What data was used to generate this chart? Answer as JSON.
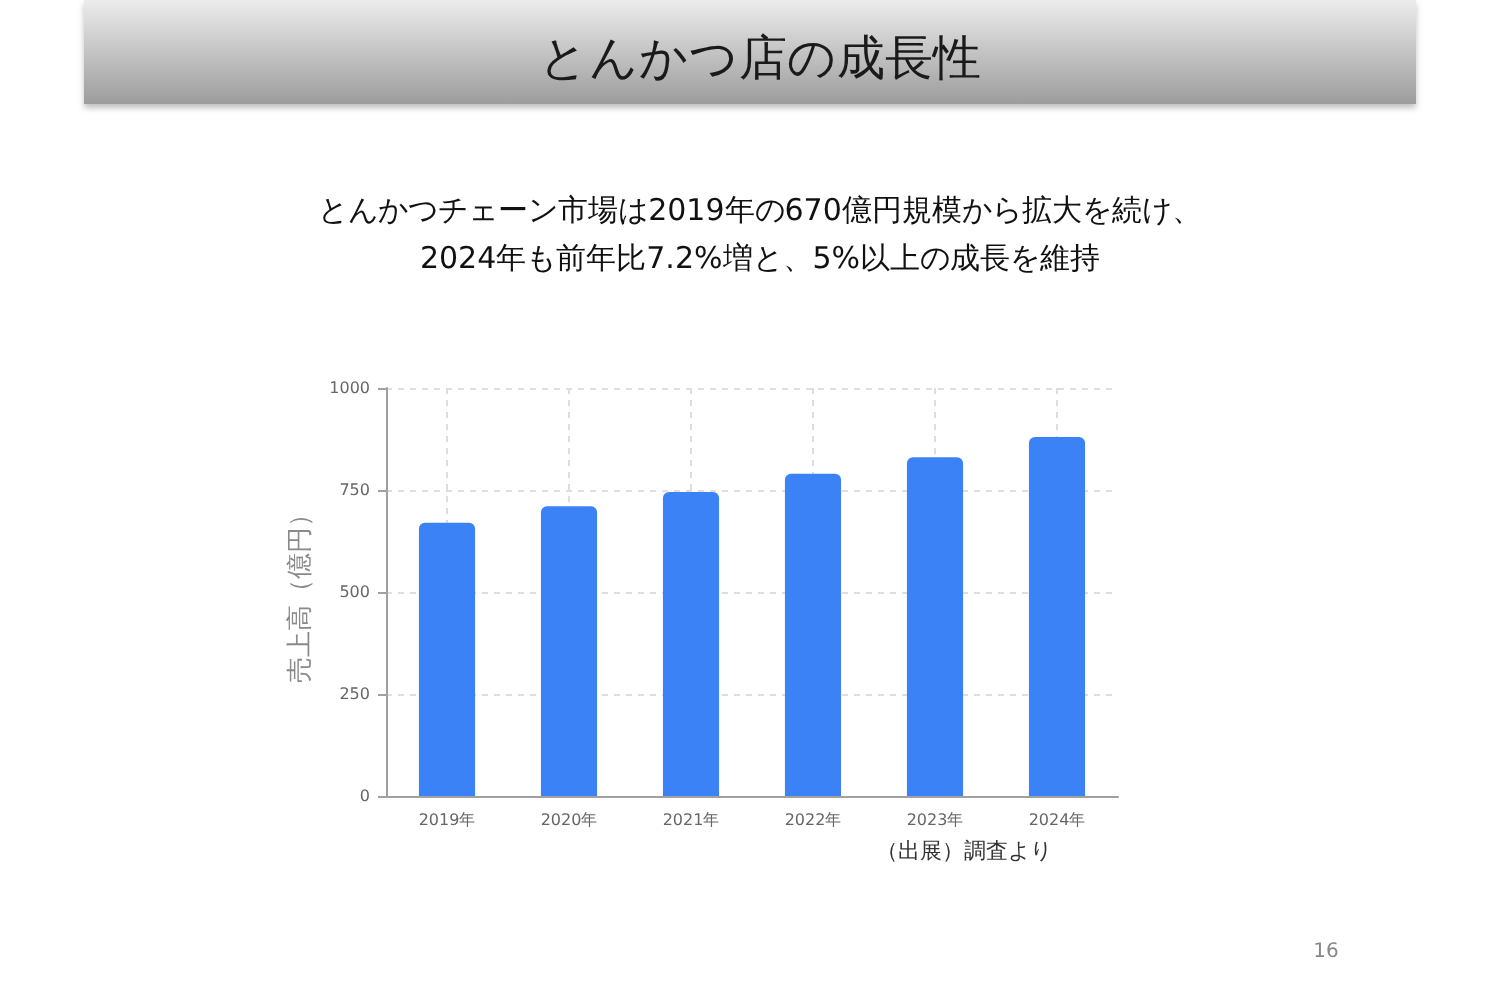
{
  "chart_data": {
    "type": "bar",
    "title": "とんかつ店の成長性",
    "subtitle": "とんかつチェーン市場は2019年の670億円規模から拡大を続け、\n2024年も前年比7.2%増と、5%以上の成長を維持",
    "ylabel": "売上高（億円）",
    "annotations": [
      "（出展）調査より",
      "16"
    ],
    "categories": [
      "2019年",
      "2020年",
      "2021年",
      "2022年",
      "2023年",
      "2024年"
    ],
    "values": [
      670,
      710,
      745,
      790,
      830,
      880
    ],
    "color": "#3b82f6",
    "ylim": [
      0,
      1000
    ],
    "yticks": [
      0,
      250,
      500,
      750,
      1000
    ],
    "grid": true
  }
}
